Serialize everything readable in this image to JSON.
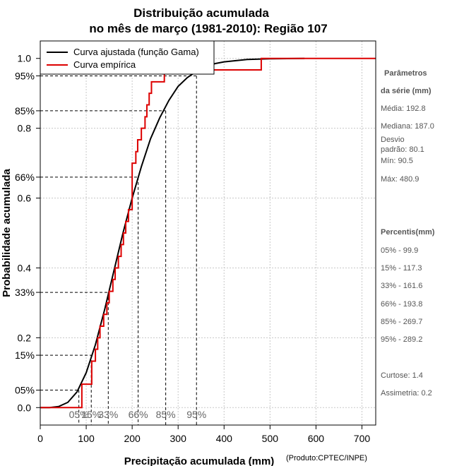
{
  "chart_data": {
    "type": "line",
    "title_line1": "Distribuição acumulada",
    "title_line2": "no mês de março (1981-2010): Região 107",
    "xlabel": "Precipitação acumulada (mm)",
    "ylabel": "Probabilidade acumulada",
    "credit": "(Produto:CPTEC/INPE)",
    "xlim": [
      0,
      730
    ],
    "ylim": [
      -0.05,
      1.05
    ],
    "x_ticks": [
      0,
      100,
      200,
      300,
      400,
      500,
      600,
      700
    ],
    "x_tick_labels": [
      "0",
      "100",
      "200",
      "300",
      "400",
      "500",
      "600",
      "700"
    ],
    "y_ticks": [
      0.0,
      0.2,
      0.4,
      0.6,
      0.8,
      1.0
    ],
    "y_tick_labels": [
      "0.0",
      "0.2",
      "0.4",
      "0.6",
      "0.8",
      "1.0"
    ],
    "percentile_ticks": [
      0.05,
      0.15,
      0.33,
      0.66,
      0.85,
      0.95
    ],
    "percentile_tick_labels": [
      "05%",
      "15%",
      "33%",
      "66%",
      "85%",
      "95%"
    ],
    "percentile_values": [
      84,
      111,
      148,
      213,
      273,
      340
    ],
    "percentile_x_labels": [
      "05%",
      "15%",
      "33%",
      "66%",
      "85%",
      "95%"
    ],
    "legend": {
      "position": "top-left",
      "entries": [
        {
          "label": "Curva ajustada (função Gama)",
          "color": "#000000"
        },
        {
          "label": "Curva empírica",
          "color": "#dd0000"
        }
      ]
    },
    "series": [
      {
        "name": "Curva ajustada (função Gama)",
        "color": "#000000",
        "x": [
          0,
          20,
          40,
          60,
          80,
          100,
          120,
          140,
          160,
          180,
          200,
          220,
          240,
          260,
          280,
          300,
          320,
          340,
          360,
          380,
          400,
          450,
          500,
          575
        ],
        "y": [
          0.0,
          0.0,
          0.003,
          0.015,
          0.045,
          0.1,
          0.18,
          0.28,
          0.39,
          0.5,
          0.6,
          0.69,
          0.77,
          0.83,
          0.88,
          0.92,
          0.945,
          0.963,
          0.976,
          0.985,
          0.99,
          0.997,
          0.999,
          1.0
        ]
      },
      {
        "name": "Curva empírica",
        "color": "#dd0000",
        "step": true,
        "x": [
          0,
          90.5,
          100,
          112,
          120,
          125,
          130,
          138,
          145,
          150,
          158,
          163,
          170,
          176,
          181,
          186,
          192,
          200,
          208,
          212,
          220,
          228,
          232,
          237,
          242,
          250,
          270,
          293,
          480.9,
          730
        ],
        "y": [
          0.0,
          0.067,
          0.067,
          0.133,
          0.167,
          0.2,
          0.233,
          0.267,
          0.3,
          0.333,
          0.367,
          0.4,
          0.433,
          0.467,
          0.5,
          0.533,
          0.567,
          0.7,
          0.733,
          0.767,
          0.8,
          0.833,
          0.867,
          0.9,
          0.933,
          0.933,
          0.967,
          0.967,
          1.0,
          1.0
        ]
      }
    ]
  },
  "side_panel": {
    "param_header_1": "Parâmetros",
    "param_header_2": "da série (mm)",
    "media": "Média: 192.8",
    "mediana": "Mediana: 187.0",
    "desvio_1": "Desvio",
    "desvio_2": "padrão: 80.1",
    "min": "Mín: 90.5",
    "max": "Máx: 480.9",
    "percentis_header": "Percentis(mm)",
    "p05": "05% - 99.9",
    "p15": "15% - 117.3",
    "p33": "33% - 161.6",
    "p66": "66% - 193.8",
    "p85": "85% - 269.7",
    "p95": "95% - 289.2",
    "curtose": "Curtose: 1.4",
    "assimetria": "Assimetria: 0.2"
  }
}
